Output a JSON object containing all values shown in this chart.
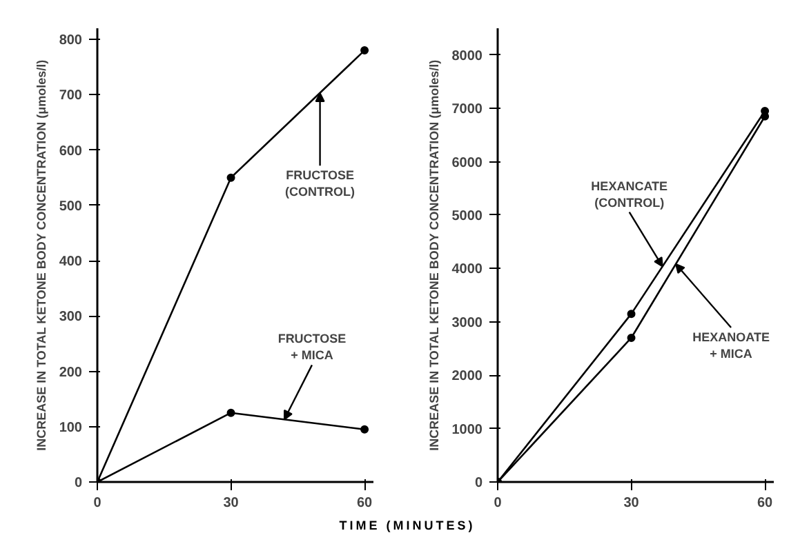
{
  "chart_data": [
    {
      "type": "line",
      "ylabel": "INCREASE IN TOTAL KETONE BODY CONCENTRATION (μmoles/l)",
      "x": [
        0,
        30,
        60
      ],
      "xlim": [
        0,
        62
      ],
      "xticks": [
        0,
        30,
        60
      ],
      "ylim": [
        0,
        820
      ],
      "yticks": [
        0,
        100,
        200,
        300,
        400,
        500,
        600,
        700,
        800
      ],
      "marker": "circle",
      "grid": false,
      "series": [
        {
          "color": "#000000",
          "values": [
            0,
            550,
            780
          ]
        },
        {
          "color": "#000000",
          "values": [
            0,
            125,
            95
          ]
        }
      ],
      "annotations": [
        {
          "text": "FRUCTOSE\n(CONTROL)",
          "x": 50,
          "y": 703
        },
        {
          "text": "FRUCTOSE\n+ MICA",
          "x": 42,
          "y": 113
        }
      ]
    },
    {
      "type": "line",
      "ylabel": "INCREASE IN TOTAL KETONE BODY CONCENTRATION (μmoles/l)",
      "xlabel": "TIME (MINUTES)",
      "x": [
        0,
        30,
        60
      ],
      "xlim": [
        0,
        62
      ],
      "xticks": [
        0,
        30,
        60
      ],
      "ylim": [
        0,
        8500
      ],
      "yticks": [
        0,
        1000,
        2000,
        3000,
        4000,
        5000,
        6000,
        7000,
        8000
      ],
      "marker": "circle",
      "grid": false,
      "series": [
        {
          "color": "#000000",
          "values": [
            0,
            3150,
            6950
          ]
        },
        {
          "color": "#000000",
          "values": [
            0,
            2700,
            6850
          ]
        }
      ],
      "annotations": [
        {
          "text": "HEXANCATE\n(CONTROL)",
          "x": 37,
          "y": 4037
        },
        {
          "text": "HEXANOATE\n+ MICA",
          "x": 40,
          "y": 4083
        }
      ]
    }
  ]
}
